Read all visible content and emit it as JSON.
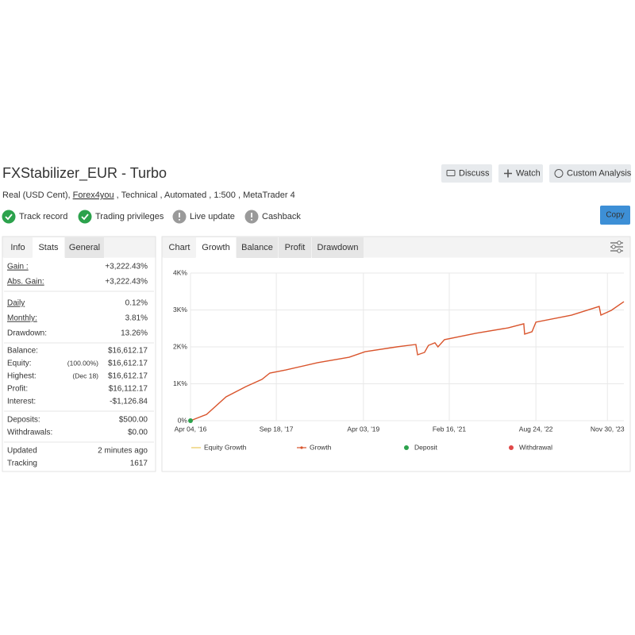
{
  "header": {
    "title": "FXStabilizer_EUR - Turbo",
    "buttons": [
      "Discuss",
      "Watch",
      "Custom Analysis"
    ],
    "subtitle_parts": [
      "Real (USD Cent), ",
      "Forex4you",
      " , Technical , Automated , 1:500 , MetaTrader 4"
    ],
    "copy": "Copy"
  },
  "badges": [
    {
      "label": "Track record",
      "status": "ok"
    },
    {
      "label": "Trading privileges",
      "status": "ok"
    },
    {
      "label": "Live update",
      "status": "off"
    },
    {
      "label": "Cashback",
      "status": "off"
    }
  ],
  "stats": {
    "tabs": [
      "Info",
      "Stats",
      "General"
    ],
    "active_tab": 1,
    "groups": [
      [
        {
          "label": "Gain :",
          "value": "+3,222.43%",
          "positive": true,
          "underline": true
        },
        {
          "label": "Abs. Gain:",
          "value": "+3,222.43%",
          "positive": true,
          "underline": true
        }
      ],
      [
        {
          "label": "Daily",
          "value": "0.12%",
          "underline": true
        },
        {
          "label": "Monthly:",
          "value": "3.81%",
          "underline": true
        },
        {
          "label": "Drawdown:",
          "value": "13.26%"
        }
      ],
      [
        {
          "label": "Balance:",
          "value": "$16,612.17"
        },
        {
          "label": "Equity:",
          "note": "(100.00%)",
          "value": "$16,612.17"
        },
        {
          "label": "Highest:",
          "note": "(Dec 18)",
          "value": "$16,612.17"
        },
        {
          "label": "Profit:",
          "value": "$16,112.17",
          "positive": true
        },
        {
          "label": "Interest:",
          "value": "-$1,126.84"
        }
      ],
      [
        {
          "label": "Deposits:",
          "value": "$500.00"
        },
        {
          "label": "Withdrawals:",
          "value": "$0.00"
        }
      ],
      [
        {
          "label": "Updated",
          "value": "2 minutes ago"
        },
        {
          "label": "Tracking",
          "value": "1617"
        }
      ]
    ]
  },
  "chart_panel": {
    "tabs": [
      "Chart",
      "Growth",
      "Balance",
      "Profit",
      "Drawdown"
    ],
    "active_tab": 1
  },
  "chart_data": {
    "type": "line",
    "x": [
      0,
      3.7,
      8.2,
      12.8,
      16.5,
      18.3,
      22,
      29.3,
      36.6,
      40.3,
      47.6,
      52,
      52.4,
      54,
      54.9,
      56.4,
      57.1,
      58.6,
      65.9,
      73.3,
      76.9,
      77.1,
      78.8,
      79.7,
      87.9,
      94.3,
      94.7,
      97.1,
      100
    ],
    "series": [
      {
        "color": "#d9542c",
        "values": [
          0,
          170,
          645,
          925,
          1120,
          1290,
          1375,
          1570,
          1720,
          1870,
          2000,
          2065,
          1785,
          1850,
          2040,
          2110,
          2000,
          2195,
          2370,
          2515,
          2625,
          2345,
          2410,
          2670,
          2860,
          3095,
          2860,
          2990,
          3225
        ]
      }
    ],
    "deposits": [
      {
        "x": 0,
        "value": 0
      }
    ],
    "xlim": [
      0,
      100
    ],
    "xticks": [
      {
        "value": 0,
        "label": "Apr 04, '16"
      },
      {
        "value": 19.8,
        "label": "Sep 18, '17"
      },
      {
        "value": 39.9,
        "label": "Apr 03, '19"
      },
      {
        "value": 59.7,
        "label": "Feb 16, '21"
      },
      {
        "value": 79.7,
        "label": "Aug 24, '22"
      },
      {
        "value": 96.2,
        "label": "Nov 30, '23"
      }
    ],
    "ylim": [
      0,
      4000
    ],
    "yticks": [
      {
        "value": 0,
        "label": "0%"
      },
      {
        "value": 1000,
        "label": "1K%"
      },
      {
        "value": 2000,
        "label": "2K%"
      },
      {
        "value": 3000,
        "label": "3K%"
      },
      {
        "value": 4000,
        "label": "4K%"
      }
    ],
    "grid": true,
    "legend": [
      {
        "name": "Equity Growth",
        "color": "#e8c75a",
        "symbol": "line"
      },
      {
        "name": "Growth",
        "color": "#d9542c",
        "symbol": "line-dot"
      },
      {
        "name": "Deposit",
        "color": "#2ca24c",
        "symbol": "dot"
      },
      {
        "name": "Withdrawal",
        "color": "#e04848",
        "symbol": "dot"
      }
    ]
  }
}
